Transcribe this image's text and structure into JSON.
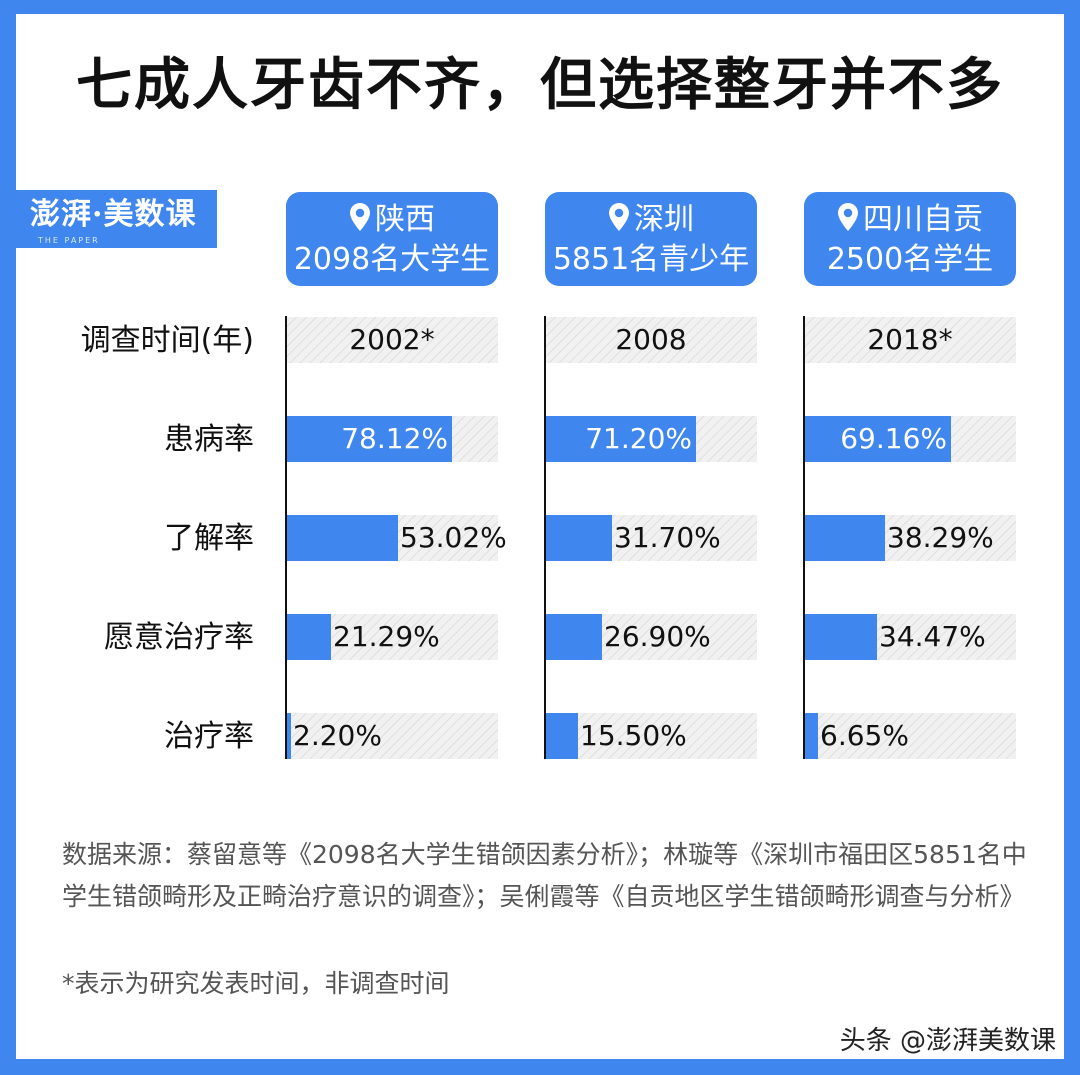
{
  "title": "七成人牙齿不齐，但选择整牙并不多",
  "logo": {
    "text": "澎湃·美数课",
    "sub": "THE PAPER"
  },
  "columns": [
    {
      "location": "陕西",
      "sample": "2098名大学生"
    },
    {
      "location": "深圳",
      "sample": "5851名青少年"
    },
    {
      "location": "四川自贡",
      "sample": "2500名学生"
    }
  ],
  "row_labels": [
    "调查时间(年)",
    "患病率",
    "了解率",
    "愿意治疗率",
    "治疗率"
  ],
  "chart_data": {
    "type": "bar",
    "orientation": "horizontal",
    "title": "七成人牙齿不齐，但选择整牙并不多",
    "categories": [
      "患病率",
      "了解率",
      "愿意治疗率",
      "治疗率"
    ],
    "survey_years": [
      "2002*",
      "2008",
      "2018*"
    ],
    "series": [
      {
        "name": "陕西 2098名大学生",
        "values": [
          78.12,
          53.02,
          21.29,
          2.2
        ],
        "labels": [
          "78.12%",
          "53.02%",
          "21.29%",
          "2.20%"
        ]
      },
      {
        "name": "深圳 5851名青少年",
        "values": [
          71.2,
          31.7,
          26.9,
          15.5
        ],
        "labels": [
          "71.20%",
          "31.70%",
          "26.90%",
          "15.50%"
        ]
      },
      {
        "name": "四川自贡 2500名学生",
        "values": [
          69.16,
          38.29,
          34.47,
          6.65
        ],
        "labels": [
          "69.16%",
          "38.29%",
          "34.47%",
          "6.65%"
        ]
      }
    ],
    "xlim": [
      0,
      100
    ],
    "grid": false,
    "bar_color": "#3f86ee"
  },
  "source": "数据来源：蔡留意等《2098名大学生错颌因素分析》；林璇等《深圳市福田区5851名中学生错颌畸形及正畸治疗意识的调查》；吴俐霞等《自贡地区学生错颌畸形调查与分析》",
  "note": "*表示为研究发表时间，非调查时间",
  "watermark": "头条 @澎湃美数课",
  "colors": {
    "accent": "#3f86ee"
  }
}
